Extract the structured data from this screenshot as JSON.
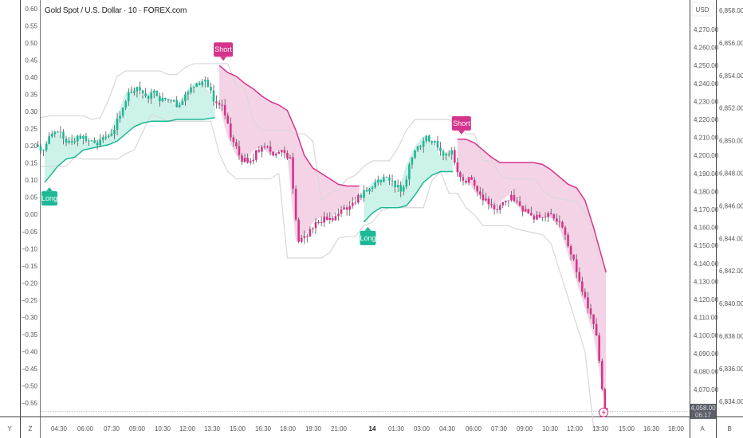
{
  "header": {
    "title": "Gold Spot / U.S. Dollar · 10 · FOREX.com"
  },
  "axes": {
    "left_ticks": [
      "0.60",
      "0.55",
      "0.50",
      "0.45",
      "0.40",
      "0.35",
      "0.30",
      "0.25",
      "0.20",
      "0.15",
      "0.10",
      "0.05",
      "0.00",
      "−0.05",
      "−0.10",
      "−0.15",
      "−0.20",
      "−0.25",
      "−0.30",
      "−0.35",
      "−0.40",
      "−0.45",
      "−0.50",
      "−0.55"
    ],
    "usd_label": "USD",
    "usd_ticks": [
      "4,270.00",
      "4,260.00",
      "4,250.00",
      "4,240.00",
      "4,230.00",
      "4,220.00",
      "4,210.00",
      "4,200.00",
      "4,190.00",
      "4,180.00",
      "4,170.00",
      "4,160.00",
      "4,150.00",
      "4,140.00",
      "4,130.00",
      "4,120.00",
      "4,110.00",
      "4,100.00",
      "4,090.00",
      "4,080.00",
      "4,070.00"
    ],
    "far_right_ticks": [
      "6,858.00",
      "6,856.00",
      "6,854.00",
      "6,852.00",
      "6,850.00",
      "6,848.00",
      "6,846.00",
      "6,844.00",
      "6,842.00",
      "6,840.00",
      "6,838.00",
      "6,836.00",
      "6,834.00"
    ],
    "time_ticks": [
      "04:30",
      "06:00",
      "07:30",
      "09:00",
      "10:30",
      "12:00",
      "13:30",
      "15:00",
      "16:30",
      "18:00",
      "19:30",
      "21:00",
      "14",
      "01:30",
      "03:00",
      "04:30",
      "06:00",
      "07:30",
      "09:00",
      "10:30",
      "12:00",
      "13:30",
      "15:00",
      "16:30",
      "18:00"
    ],
    "left_buttons": [
      "Y",
      "Z"
    ],
    "right_buttons": [
      "A",
      "B"
    ]
  },
  "last_price": {
    "value": "4,058.00",
    "countdown": "06:17"
  },
  "colors": {
    "long": "#1db896",
    "short": "#d6338a",
    "long_fill": "#cdf2e9",
    "short_fill": "#f5d3e6",
    "envelope": "#d8d8d8",
    "price_label_bg": "#5d606b"
  },
  "chart_data": {
    "type": "candlestick",
    "title": "Gold Spot / U.S. Dollar · 10 · FOREX.com",
    "interval_minutes_per_point": 30,
    "ylim_usd": [
      4058,
      4270
    ],
    "closes": [
      4203,
      4212,
      4213,
      4208,
      4211,
      4208,
      4207,
      4210,
      4212,
      4222,
      4235,
      4238,
      4233,
      4236,
      4232,
      4230,
      4228,
      4235,
      4240,
      4242,
      4230,
      4228,
      4210,
      4200,
      4196,
      4203,
      4205,
      4200,
      4203,
      4199,
      4152,
      4155,
      4163,
      4166,
      4164,
      4170,
      4172,
      4178,
      4180,
      4185,
      4188,
      4186,
      4180,
      4195,
      4205,
      4211,
      4208,
      4200,
      4203,
      4188,
      4188,
      4180,
      4176,
      4170,
      4174,
      4178,
      4172,
      4168,
      4167,
      4166,
      4165,
      4160,
      4145,
      4130,
      4115,
      4100,
      4058
    ],
    "trailing_stop": [
      4185,
      4188,
      4194,
      4198,
      4199,
      4203,
      4204,
      4205,
      4206,
      4208,
      4212,
      4216,
      4218,
      4219,
      4219,
      4219,
      4220,
      4220,
      4220,
      4220,
      4221,
      4250,
      4246,
      4244,
      4240,
      4237,
      4233,
      4230,
      4228,
      4225,
      4214,
      4200,
      4193,
      4190,
      4187,
      4184,
      4183,
      4183,
      4163,
      4168,
      4171,
      4171,
      4171,
      4172,
      4178,
      4185,
      4189,
      4191,
      4191,
      4209,
      4209,
      4207,
      4203,
      4199,
      4196,
      4196,
      4196,
      4196,
      4196,
      4195,
      4192,
      4188,
      4184,
      4182,
      4175,
      4160,
      4135
    ],
    "side": "LLLLLLLLLLLLLLLLLLLLLSSSSSSSSSSSSSSSSSLLLLLLLLLLLSSSSSSSSSSSSSSSSSS",
    "signals": [
      {
        "label": "Long",
        "index": 0,
        "side": "long"
      },
      {
        "label": "Short",
        "index": 21,
        "side": "short"
      },
      {
        "label": "Long",
        "index": 38,
        "side": "long"
      },
      {
        "label": "Short",
        "index": 49,
        "side": "short"
      }
    ]
  }
}
